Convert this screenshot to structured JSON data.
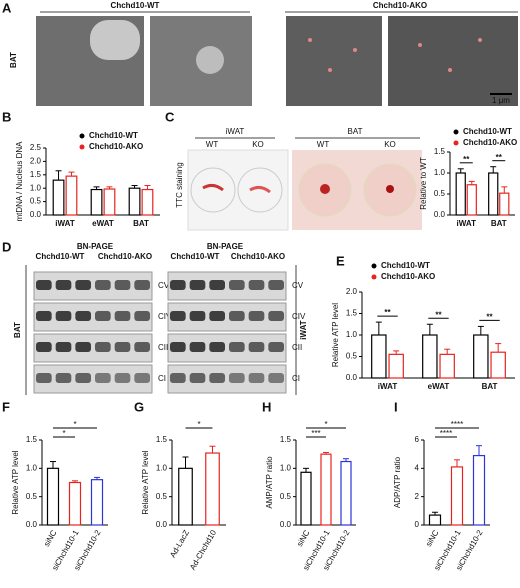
{
  "panels": {
    "A": {
      "label": "A",
      "groups": [
        "Chchd10-WT",
        "Chchd10-AKO"
      ],
      "tissue": "BAT",
      "scale": "1 μm"
    },
    "C": {
      "label": "C",
      "stain": "TTC staining",
      "tissues": [
        "iWAT",
        "BAT"
      ],
      "genotypes": [
        "WT",
        "KO"
      ]
    },
    "D": {
      "label": "D",
      "method": "BN-PAGE",
      "groups": [
        "Chchd10-WT",
        "Chchd10-AKO"
      ],
      "tissues": [
        "BAT",
        "iWAT"
      ],
      "complexes": [
        "CV",
        "CIV",
        "CII",
        "CI"
      ]
    }
  },
  "chart_data": [
    {
      "type": "bar",
      "panel": "B",
      "y_label": "mtDNA / Nucleus DNA",
      "categories": [
        "iWAT",
        "eWAT",
        "BAT"
      ],
      "series": [
        {
          "name": "Chchd10-WT",
          "color": "#000000",
          "values": [
            1.3,
            0.95,
            1.0
          ],
          "errors": [
            0.35,
            0.1,
            0.1
          ]
        },
        {
          "name": "Chchd10-AKO",
          "color": "#e8231f",
          "values": [
            1.45,
            0.97,
            0.95
          ],
          "errors": [
            0.15,
            0.08,
            0.15
          ]
        }
      ],
      "ylim": [
        0,
        2.5
      ],
      "yticks": [
        {
          "value": 0,
          "label": "0.0"
        },
        0.5,
        {
          "value": 1,
          "label": "1.0"
        },
        1.5,
        {
          "value": 2,
          "label": "2.0"
        },
        2.5
      ]
    },
    {
      "type": "bar",
      "y_label": "Relative to WT",
      "categories": [
        "iWAT",
        "BAT"
      ],
      "series": [
        {
          "name": "Chchd10-WT",
          "color": "#000000",
          "values": [
            1.0,
            1.0
          ],
          "errors": [
            0.1,
            0.15
          ]
        },
        {
          "name": "Chchd10-AKO",
          "color": "#e8231f",
          "values": [
            0.72,
            0.52
          ],
          "errors": [
            0.08,
            0.15
          ]
        }
      ],
      "annotations": [
        "**",
        "**"
      ],
      "ylim": [
        0,
        1.5
      ],
      "yticks": [
        {
          "value": 0,
          "label": "0.0"
        },
        0.5,
        {
          "value": 1,
          "label": "1.0"
        },
        1.5
      ]
    },
    {
      "type": "bar",
      "panel": "E",
      "y_label": "Relative ATP level",
      "categories": [
        "iWAT",
        "eWAT",
        "BAT"
      ],
      "series": [
        {
          "name": "Chchd10-WT",
          "color": "#000000",
          "values": [
            1.0,
            1.0,
            1.0
          ],
          "errors": [
            0.3,
            0.25,
            0.2
          ]
        },
        {
          "name": "Chchd10-AKO",
          "color": "#e8231f",
          "values": [
            0.55,
            0.55,
            0.6
          ],
          "errors": [
            0.08,
            0.12,
            0.2
          ]
        }
      ],
      "annotations": [
        "**",
        "**",
        "**"
      ],
      "ylim": [
        0,
        2
      ],
      "yticks": [
        {
          "value": 0,
          "label": "0.0"
        },
        0.5,
        {
          "value": 1,
          "label": "1.0"
        },
        1.5,
        {
          "value": 2,
          "label": "2.0"
        }
      ]
    },
    {
      "type": "bar",
      "panel": "F",
      "y_label": "Relative ATP level",
      "categories": [
        "siNC",
        "siChchd10-1",
        "siChchd10-2"
      ],
      "values": [
        1.0,
        0.75,
        0.8
      ],
      "errors": [
        0.12,
        0.03,
        0.04
      ],
      "colors": [
        "#000000",
        "#e8231f",
        "#2b35d8"
      ],
      "annotations": [
        {
          "text": "*",
          "between": [
            "siNC",
            "siChchd10-2"
          ]
        },
        {
          "text": "*",
          "between": [
            "siNC",
            "siChchd10-1"
          ]
        }
      ],
      "ylim": [
        0,
        1.5
      ],
      "yticks": [
        {
          "value": 0,
          "label": "0.0"
        },
        0.5,
        {
          "value": 1,
          "label": "1.0"
        },
        1.5
      ]
    },
    {
      "type": "bar",
      "panel": "G",
      "y_label": "Relative ATP level",
      "categories": [
        "Ad-LacZ",
        "Ad-Chchd10"
      ],
      "values": [
        1.0,
        1.27
      ],
      "errors": [
        0.2,
        0.12
      ],
      "colors": [
        "#000000",
        "#e8231f"
      ],
      "annotations": [
        {
          "text": "*",
          "between": [
            "Ad-LacZ",
            "Ad-Chchd10"
          ]
        }
      ],
      "ylim": [
        0,
        1.5
      ],
      "yticks": [
        {
          "value": 0,
          "label": "0.0"
        },
        0.5,
        {
          "value": 1,
          "label": "1.0"
        },
        1.5
      ]
    },
    {
      "type": "bar",
      "panel": "H",
      "y_label": "AMP/ATP ratio",
      "categories": [
        "siNC",
        "siChchd10-1",
        "siChchd10-2"
      ],
      "values": [
        0.93,
        1.25,
        1.12
      ],
      "errors": [
        0.07,
        0.03,
        0.05
      ],
      "colors": [
        "#000000",
        "#e8231f",
        "#2b35d8"
      ],
      "annotations": [
        {
          "text": "*",
          "between": [
            "siNC",
            "siChchd10-2"
          ]
        },
        {
          "text": "***",
          "between": [
            "siNC",
            "siChchd10-1"
          ]
        }
      ],
      "ylim": [
        0,
        1.5
      ],
      "yticks": [
        {
          "value": 0,
          "label": "0.0"
        },
        0.5,
        {
          "value": 1,
          "label": "1.0"
        },
        1.5
      ]
    },
    {
      "type": "bar",
      "panel": "I",
      "y_label": "ADP/ATP ratio",
      "categories": [
        "siNC",
        "siChchd10-1",
        "siChchd10-2"
      ],
      "values": [
        0.7,
        4.1,
        4.9
      ],
      "errors": [
        0.2,
        0.5,
        0.7
      ],
      "colors": [
        "#000000",
        "#e8231f",
        "#2b35d8"
      ],
      "annotations": [
        {
          "text": "****",
          "between": [
            "siNC",
            "siChchd10-2"
          ]
        },
        {
          "text": "****",
          "between": [
            "siNC",
            "siChchd10-1"
          ]
        }
      ],
      "ylim": [
        0,
        6
      ],
      "yticks": [
        0,
        2,
        4,
        6
      ]
    }
  ]
}
